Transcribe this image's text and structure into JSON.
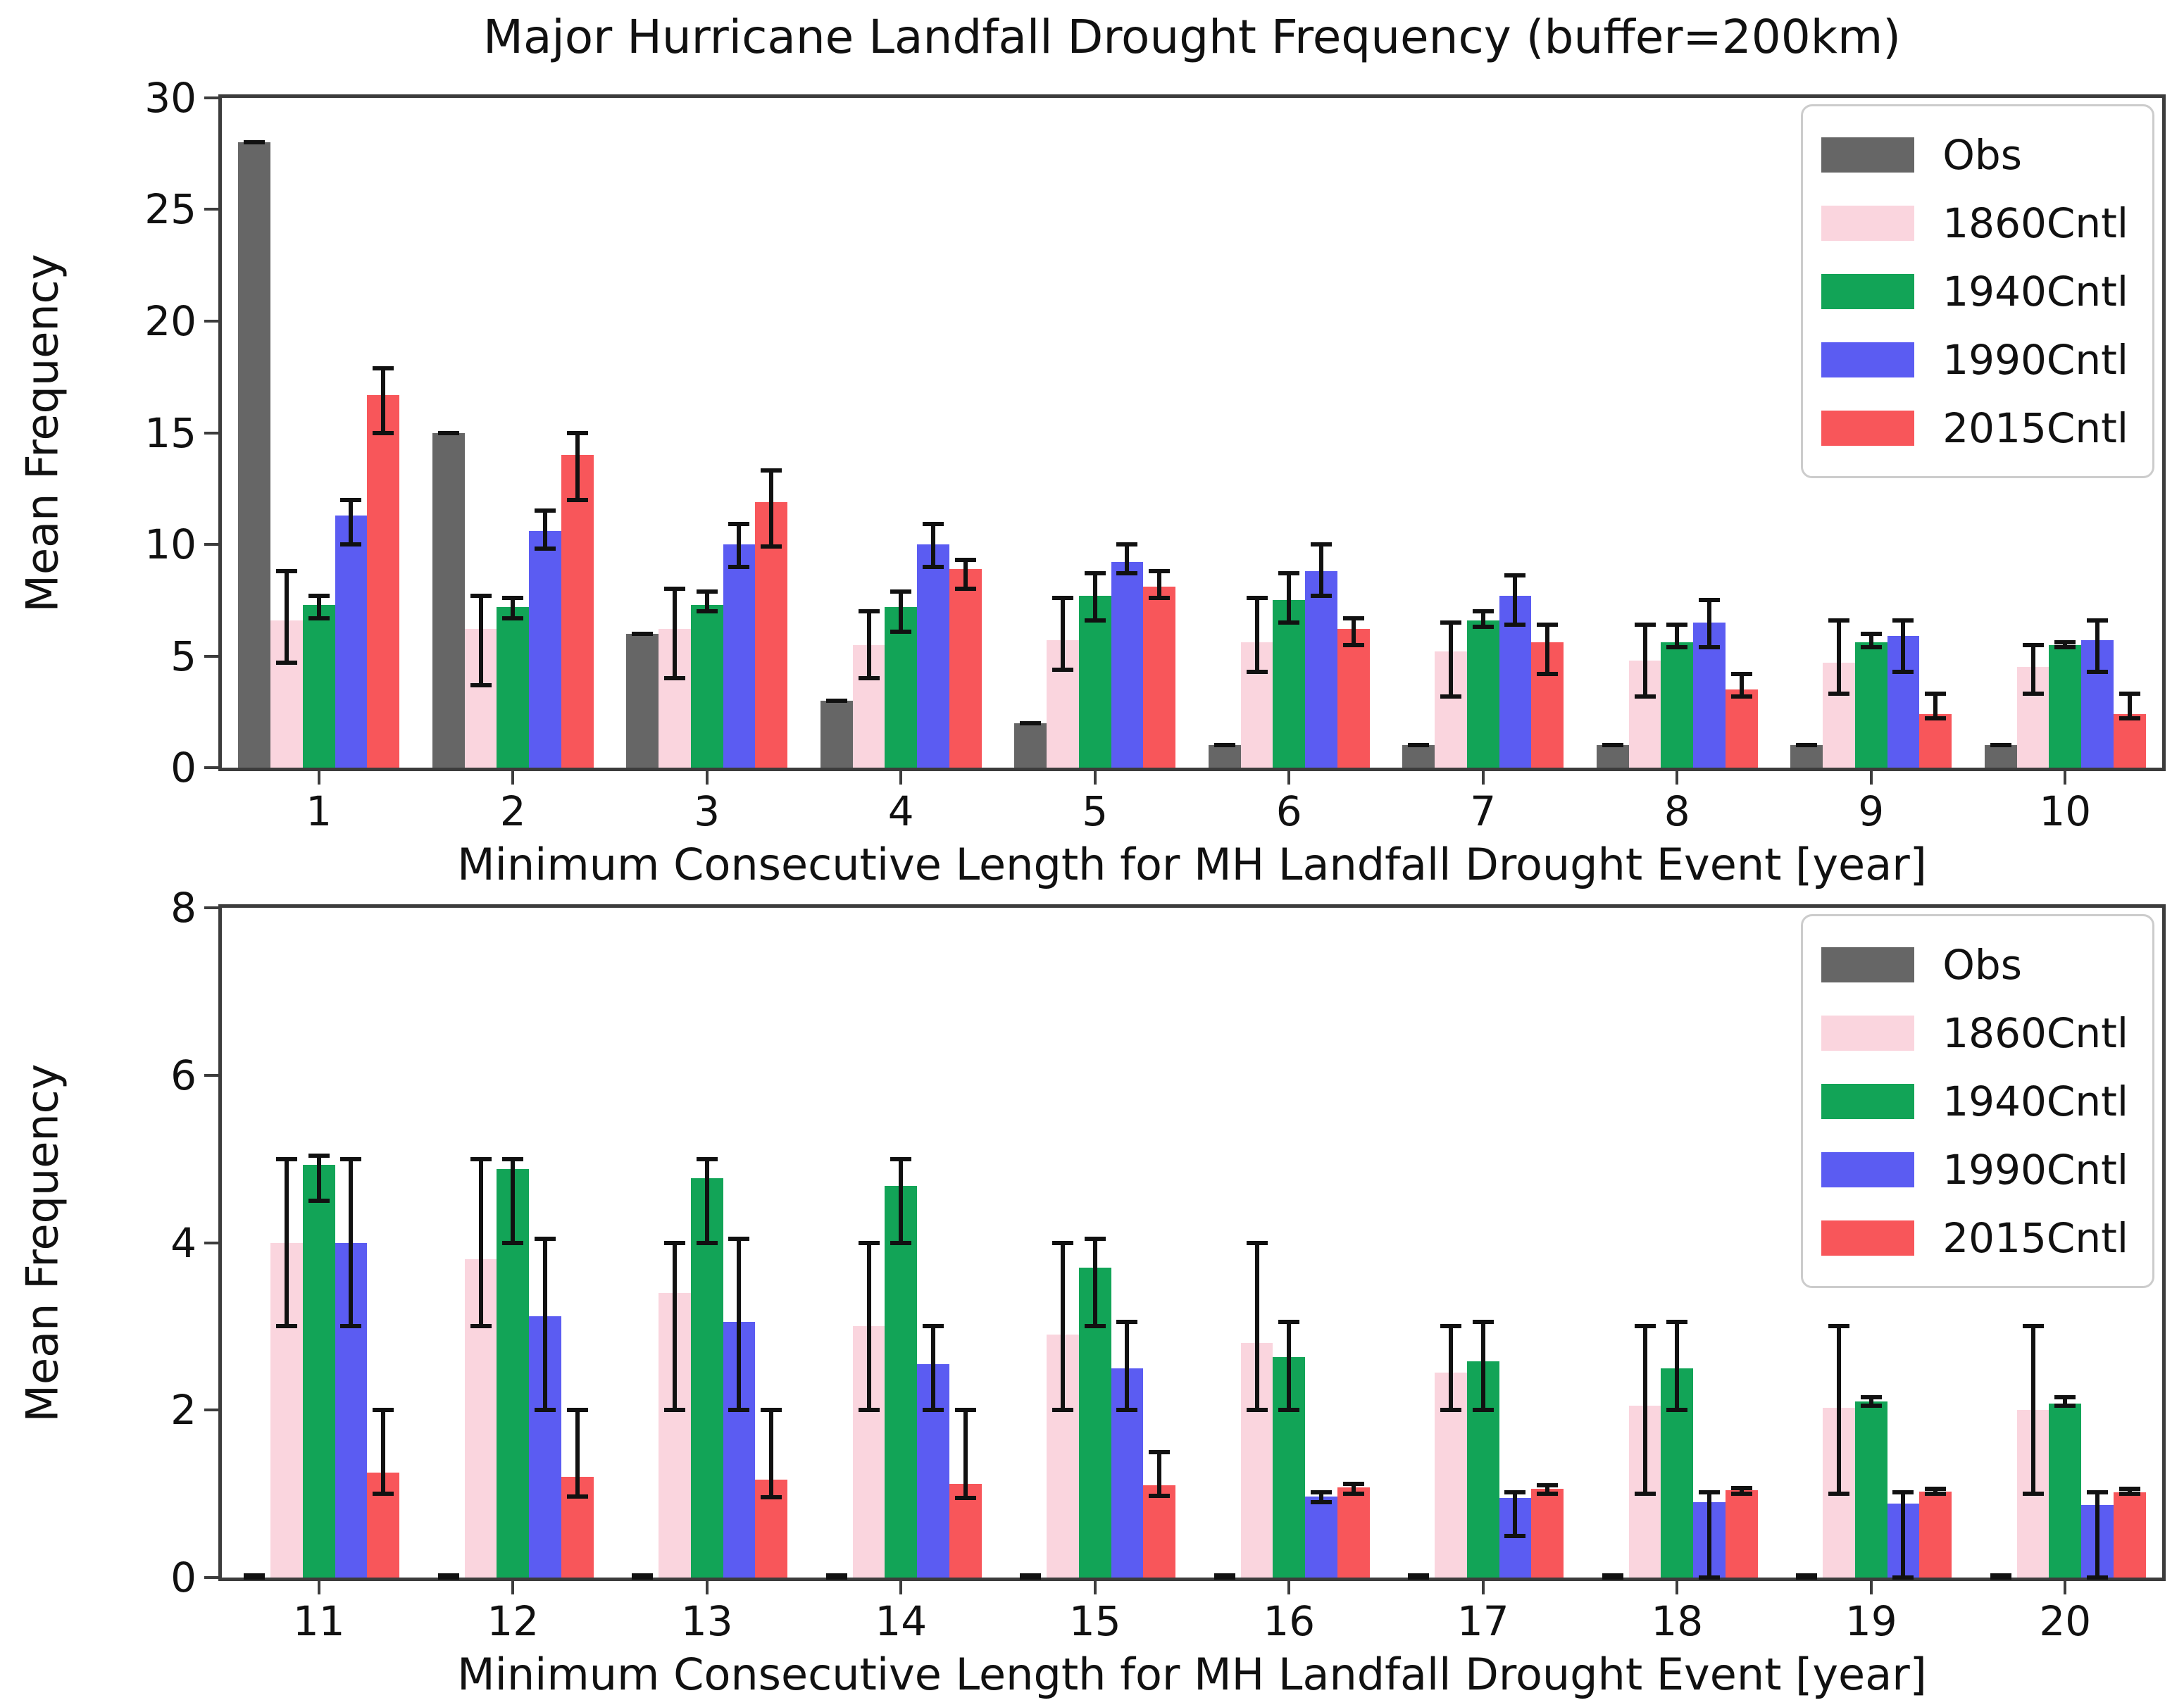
{
  "figure": {
    "title": "Major Hurricane Landfall Drought Frequency (buffer=200km)"
  },
  "colors": {
    "obs": "#666666",
    "cntl_1860": "#fad5de",
    "cntl_1940": "#12a457",
    "cntl_1990": "#5b5cf2",
    "cntl_2015": "#f8565a",
    "error_bar": "#111111",
    "spine": "#3c3c3c"
  },
  "legend_labels": [
    "Obs",
    "1860Cntl",
    "1940Cntl",
    "1990Cntl",
    "2015Cntl"
  ],
  "chart_data": [
    {
      "type": "bar",
      "panel": "top",
      "title": "Major Hurricane Landfall Drought Frequency (buffer=200km)",
      "xlabel": "Minimum Consecutive Length for MH Landfall Drought Event [year]",
      "ylabel": "Mean Frequency",
      "ylim": [
        0,
        30
      ],
      "yticks": [
        0,
        5,
        10,
        15,
        20,
        25,
        30
      ],
      "grid": false,
      "legend_position": "upper right",
      "categories": [
        "1",
        "2",
        "3",
        "4",
        "5",
        "6",
        "7",
        "8",
        "9",
        "10"
      ],
      "series": [
        {
          "name": "Obs",
          "color": "#666666",
          "values": [
            28,
            15,
            6,
            3,
            2,
            1,
            1,
            1,
            1,
            1
          ],
          "err_lo": [
            28,
            15,
            6,
            3,
            2,
            1,
            1,
            1,
            1,
            1
          ],
          "err_hi": [
            28,
            15,
            6,
            3,
            2,
            1,
            1,
            1,
            1,
            1
          ]
        },
        {
          "name": "1860Cntl",
          "color": "#fad5de",
          "values": [
            6.6,
            6.2,
            6.2,
            5.5,
            5.7,
            5.6,
            5.2,
            4.8,
            4.7,
            4.5
          ],
          "err_lo": [
            4.7,
            3.7,
            4.0,
            4.0,
            4.4,
            4.3,
            3.2,
            3.2,
            3.3,
            3.3
          ],
          "err_hi": [
            8.8,
            7.7,
            8.0,
            7.0,
            7.6,
            7.6,
            6.5,
            6.4,
            6.6,
            5.5
          ]
        },
        {
          "name": "1940Cntl",
          "color": "#12a457",
          "values": [
            7.3,
            7.2,
            7.3,
            7.2,
            7.7,
            7.5,
            6.6,
            5.6,
            5.6,
            5.5
          ],
          "err_lo": [
            6.7,
            6.7,
            7.0,
            6.1,
            6.6,
            6.5,
            6.3,
            5.4,
            5.4,
            5.4
          ],
          "err_hi": [
            7.7,
            7.6,
            7.9,
            7.9,
            8.7,
            8.7,
            7.0,
            6.4,
            6.0,
            5.6
          ]
        },
        {
          "name": "1990Cntl",
          "color": "#5b5cf2",
          "values": [
            11.3,
            10.6,
            10.0,
            10.0,
            9.2,
            8.8,
            7.7,
            6.5,
            5.9,
            5.7
          ],
          "err_lo": [
            10.0,
            9.8,
            9.0,
            9.0,
            8.7,
            7.7,
            6.4,
            5.4,
            4.3,
            4.3
          ],
          "err_hi": [
            12.0,
            11.5,
            10.9,
            10.9,
            10.0,
            10.0,
            8.6,
            7.5,
            6.6,
            6.6
          ]
        },
        {
          "name": "2015Cntl",
          "color": "#f8565a",
          "values": [
            16.7,
            14.0,
            11.9,
            8.9,
            8.1,
            6.2,
            5.6,
            3.5,
            2.4,
            2.4
          ],
          "err_lo": [
            15.0,
            12.0,
            9.9,
            8.0,
            7.6,
            5.5,
            4.2,
            3.2,
            2.2,
            2.2
          ],
          "err_hi": [
            17.9,
            15.0,
            13.3,
            9.3,
            8.8,
            6.7,
            6.4,
            4.2,
            3.3,
            3.3
          ]
        }
      ]
    },
    {
      "type": "bar",
      "panel": "bottom",
      "title": "",
      "xlabel": "Minimum Consecutive Length for MH Landfall Drought Event [year]",
      "ylabel": "Mean Frequency",
      "ylim": [
        0,
        8
      ],
      "yticks": [
        0,
        2,
        4,
        6,
        8
      ],
      "grid": false,
      "legend_position": "upper right",
      "categories": [
        "11",
        "12",
        "13",
        "14",
        "15",
        "16",
        "17",
        "18",
        "19",
        "20"
      ],
      "series": [
        {
          "name": "Obs",
          "color": "#666666",
          "values": [
            0,
            0,
            0,
            0,
            0,
            0,
            0,
            0,
            0,
            0
          ],
          "err_lo": [
            0,
            0,
            0,
            0,
            0,
            0,
            0,
            0,
            0,
            0
          ],
          "err_hi": [
            0,
            0,
            0,
            0,
            0,
            0,
            0,
            0,
            0,
            0
          ]
        },
        {
          "name": "1860Cntl",
          "color": "#fad5de",
          "values": [
            4.0,
            3.8,
            3.4,
            3.0,
            2.9,
            2.8,
            2.45,
            2.05,
            2.03,
            2.0
          ],
          "err_lo": [
            3.0,
            3.0,
            2.0,
            2.0,
            2.0,
            2.0,
            2.0,
            1.0,
            1.0,
            1.0
          ],
          "err_hi": [
            5.0,
            5.0,
            4.0,
            4.0,
            4.0,
            4.0,
            3.0,
            3.0,
            3.0,
            3.0
          ]
        },
        {
          "name": "1940Cntl",
          "color": "#12a457",
          "values": [
            4.93,
            4.88,
            4.77,
            4.68,
            3.7,
            2.63,
            2.58,
            2.5,
            2.1,
            2.08
          ],
          "err_lo": [
            4.5,
            4.0,
            4.0,
            4.0,
            3.0,
            2.0,
            2.0,
            2.0,
            2.05,
            2.05
          ],
          "err_hi": [
            5.04,
            5.0,
            5.0,
            5.0,
            4.05,
            3.05,
            3.05,
            3.05,
            2.15,
            2.15
          ]
        },
        {
          "name": "1990Cntl",
          "color": "#5b5cf2",
          "values": [
            4.0,
            3.12,
            3.05,
            2.55,
            2.5,
            0.97,
            0.95,
            0.9,
            0.88,
            0.87
          ],
          "err_lo": [
            3.0,
            2.0,
            2.0,
            2.0,
            2.0,
            0.9,
            0.5,
            0.0,
            0.0,
            0.0
          ],
          "err_hi": [
            5.0,
            4.05,
            4.05,
            3.0,
            3.05,
            1.02,
            1.02,
            1.02,
            1.02,
            1.02
          ]
        },
        {
          "name": "2015Cntl",
          "color": "#f8565a",
          "values": [
            1.25,
            1.2,
            1.17,
            1.12,
            1.1,
            1.08,
            1.06,
            1.04,
            1.03,
            1.02
          ],
          "err_lo": [
            1.0,
            0.97,
            0.96,
            0.95,
            0.98,
            1.0,
            1.0,
            1.0,
            1.0,
            1.0
          ],
          "err_hi": [
            2.0,
            2.0,
            2.0,
            2.0,
            1.5,
            1.12,
            1.1,
            1.07,
            1.06,
            1.06
          ]
        }
      ]
    }
  ]
}
